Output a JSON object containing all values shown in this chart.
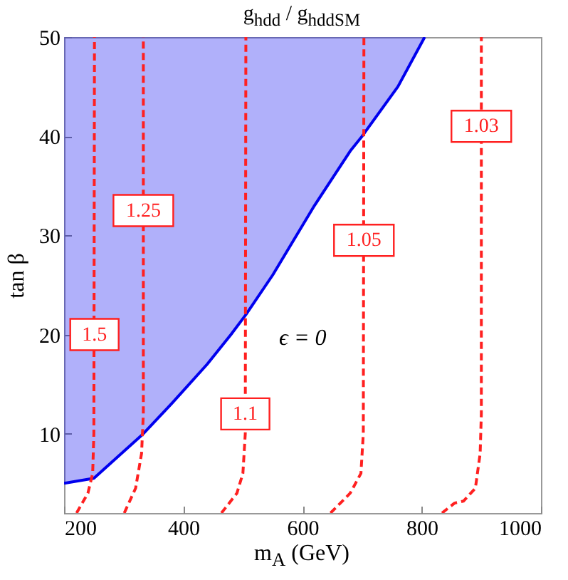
{
  "chart_data": {
    "type": "line",
    "title": "g$_{hdd}$ / g$_{hdd}$$_{SM}$",
    "xlabel": "m$_{A}$ (GeV)",
    "ylabel": "tan β",
    "xlim": [
      200,
      1000
    ],
    "ylim": [
      2,
      50
    ],
    "xticks": [
      200,
      400,
      600,
      800,
      1000
    ],
    "yticks": [
      10,
      20,
      30,
      40,
      50
    ],
    "marker": "none",
    "series": [
      {
        "color": "#0000ee",
        "line_style": "solid",
        "x": [
          200,
          250,
          333,
          380,
          440,
          480,
          505,
          550,
          620,
          680,
          700,
          760,
          805
        ],
        "values": [
          5,
          5.5,
          10,
          13,
          17,
          20,
          22,
          26,
          33,
          38.5,
          40,
          45,
          50
        ],
        "lower": [
          5,
          5.5,
          10,
          13,
          17,
          20,
          22,
          26,
          33,
          38.5,
          40,
          45,
          50
        ],
        "upper": [
          50,
          50,
          50,
          50,
          50,
          50,
          50,
          50,
          50,
          50,
          50,
          50,
          50
        ]
      },
      {
        "color": "#ff2020",
        "line_style": "dashed",
        "x": [
          221,
          240,
          248,
          250,
          251
        ],
        "values": [
          2,
          4,
          6,
          10,
          50
        ]
      },
      {
        "color": "#ff2020",
        "line_style": "dashed",
        "x": [
          301,
          320,
          330,
          333,
          333
        ],
        "values": [
          2,
          4.5,
          8,
          12,
          50
        ]
      },
      {
        "color": "#ff2020",
        "line_style": "dashed",
        "x": [
          464,
          490,
          500,
          504,
          505
        ],
        "values": [
          2,
          4,
          6,
          10,
          50
        ]
      },
      {
        "color": "#ff2020",
        "line_style": "dashed",
        "x": [
          647,
          680,
          698,
          702,
          703
        ],
        "values": [
          2,
          4,
          6,
          10,
          50
        ]
      },
      {
        "color": "#ff2020",
        "line_style": "dashed",
        "x": [
          834,
          855,
          870,
          890,
          898,
          900,
          900
        ],
        "values": [
          2,
          3,
          3.2,
          4.5,
          8,
          12,
          50
        ]
      }
    ],
    "annotations": [
      {
        "text": "1.5",
        "x": 251,
        "y": 20
      },
      {
        "text": "1.25",
        "x": 333,
        "y": 32.5
      },
      {
        "text": "1.1",
        "x": 504,
        "y": 12
      },
      {
        "text": "1.05",
        "x": 703,
        "y": 29.5
      },
      {
        "text": "1.03",
        "x": 900,
        "y": 41
      },
      "ϵ = 0"
    ]
  }
}
